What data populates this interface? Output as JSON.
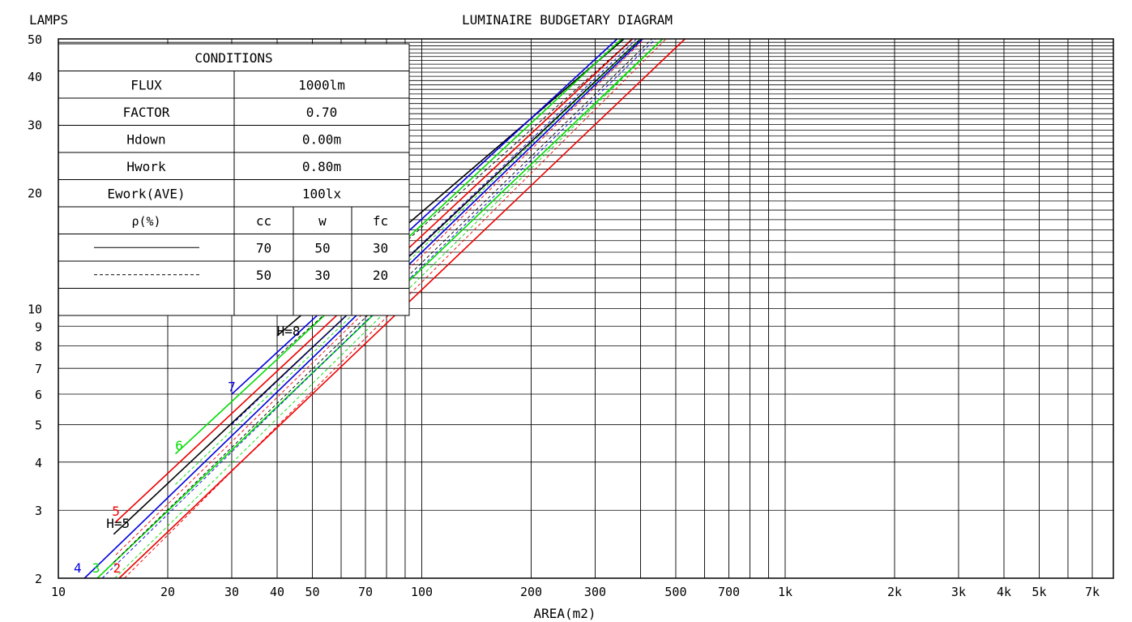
{
  "chart_data": {
    "type": "line",
    "title": "LUMINAIRE BUDGETARY DIAGRAM",
    "ylabel": "LAMPS",
    "xlabel": "AREA(m2)",
    "x_scale": "log",
    "y_scale": "log",
    "xlim": [
      10,
      8000
    ],
    "ylim": [
      2,
      50
    ],
    "grid": true,
    "x_tick_labels": [
      {
        "value": 10,
        "label": "10"
      },
      {
        "value": 20,
        "label": "20"
      },
      {
        "value": 30,
        "label": "30"
      },
      {
        "value": 40,
        "label": "40"
      },
      {
        "value": 50,
        "label": "50"
      },
      {
        "value": 70,
        "label": "70"
      },
      {
        "value": 100,
        "label": "100"
      },
      {
        "value": 200,
        "label": "200"
      },
      {
        "value": 300,
        "label": "300"
      },
      {
        "value": 500,
        "label": "500"
      },
      {
        "value": 700,
        "label": "700"
      },
      {
        "value": 1000,
        "label": "1k"
      },
      {
        "value": 2000,
        "label": "2k"
      },
      {
        "value": 3000,
        "label": "3k"
      },
      {
        "value": 4000,
        "label": "4k"
      },
      {
        "value": 5000,
        "label": "5k"
      },
      {
        "value": 7000,
        "label": "7k"
      }
    ],
    "y_tick_labels": [
      {
        "value": 2,
        "label": "2"
      },
      {
        "value": 3,
        "label": "3"
      },
      {
        "value": 4,
        "label": "4"
      },
      {
        "value": 5,
        "label": "5"
      },
      {
        "value": 6,
        "label": "6"
      },
      {
        "value": 7,
        "label": "7"
      },
      {
        "value": 8,
        "label": "8"
      },
      {
        "value": 9,
        "label": "9"
      },
      {
        "value": 10,
        "label": "10"
      },
      {
        "value": 20,
        "label": "20"
      },
      {
        "value": 30,
        "label": "30"
      },
      {
        "value": 40,
        "label": "40"
      },
      {
        "value": 50,
        "label": "50"
      }
    ],
    "series": [
      {
        "label": "H=8",
        "color": "#000000",
        "style": "solid",
        "x": [
          40,
          360
        ],
        "y": [
          8.5,
          50
        ]
      },
      {
        "label": "7",
        "color": "#0000dd",
        "style": "solid",
        "x": [
          30,
          345
        ],
        "y": [
          6.0,
          50
        ]
      },
      {
        "label": "6",
        "color": "#00dd00",
        "style": "solid",
        "x": [
          21,
          355
        ],
        "y": [
          4.2,
          50
        ]
      },
      {
        "label": "5",
        "color": "#ee0000",
        "style": "solid",
        "x": [
          14.4,
          380
        ],
        "y": [
          2.8,
          50
        ]
      },
      {
        "label": "H=5",
        "color": "#000000",
        "style": "solid",
        "x": [
          14.2,
          400
        ],
        "y": [
          2.6,
          50
        ]
      },
      {
        "label": "4",
        "color": "#0000dd",
        "style": "solid",
        "x": [
          11.8,
          405
        ],
        "y": [
          2.0,
          50
        ]
      },
      {
        "label": "3",
        "color": "#00dd00",
        "style": "solid",
        "x": [
          12.8,
          460
        ],
        "y": [
          2.0,
          50
        ]
      },
      {
        "label": "2",
        "color": "#ee0000",
        "style": "solid",
        "x": [
          14.7,
          530
        ],
        "y": [
          2.0,
          50
        ]
      },
      {
        "label": "",
        "color": "#000000",
        "style": "dashed",
        "x": [
          40,
          380
        ],
        "y": [
          7.5,
          50
        ]
      },
      {
        "label": "",
        "color": "#0000dd",
        "style": "dashed",
        "x": [
          30,
          390
        ],
        "y": [
          5.0,
          50
        ]
      },
      {
        "label": "",
        "color": "#00dd00",
        "style": "dashed",
        "x": [
          21,
          400
        ],
        "y": [
          3.5,
          50
        ]
      },
      {
        "label": "",
        "color": "#ee0000",
        "style": "dashed",
        "x": [
          14.4,
          410
        ],
        "y": [
          2.3,
          50
        ]
      },
      {
        "label": "",
        "color": "#000000",
        "style": "dashed",
        "x": [
          14.2,
          430
        ],
        "y": [
          2.2,
          50
        ]
      },
      {
        "label": "",
        "color": "#0000dd",
        "style": "dashed",
        "x": [
          13.2,
          440
        ],
        "y": [
          2.0,
          50
        ]
      },
      {
        "label": "",
        "color": "#00dd00",
        "style": "dashed",
        "x": [
          14.3,
          460
        ],
        "y": [
          2.0,
          50
        ]
      },
      {
        "label": "",
        "color": "#ee0000",
        "style": "dashed",
        "x": [
          15.2,
          470
        ],
        "y": [
          2.0,
          50
        ]
      }
    ],
    "series_labels": [
      {
        "text": "H=8",
        "color": "#000000",
        "x": 43,
        "y": 8.5
      },
      {
        "text": "7",
        "color": "#0000dd",
        "x": 30,
        "y": 6.1
      },
      {
        "text": "6",
        "color": "#00dd00",
        "x": 21.5,
        "y": 4.3
      },
      {
        "text": "5",
        "color": "#ee0000",
        "x": 14.4,
        "y": 2.9
      },
      {
        "text": "H=5",
        "color": "#000000",
        "x": 14.6,
        "y": 2.7
      },
      {
        "text": "4",
        "color": "#0000dd",
        "x": 11.3,
        "y": 2.07
      },
      {
        "text": "3",
        "color": "#00dd00",
        "x": 12.7,
        "y": 2.07
      },
      {
        "text": "2",
        "color": "#ee0000",
        "x": 14.5,
        "y": 2.07
      }
    ],
    "conditions_table": {
      "title": "CONDITIONS",
      "rows": [
        {
          "label": "FLUX",
          "value": "1000lm"
        },
        {
          "label": "FACTOR",
          "value": "0.70"
        },
        {
          "label": "Hdown",
          "value": "0.00m"
        },
        {
          "label": "Hwork",
          "value": "0.80m"
        },
        {
          "label": "Ework(AVE)",
          "value": "100lx"
        }
      ],
      "reflectance": {
        "label": "ρ(%)",
        "columns": [
          "cc",
          "w",
          "fc"
        ],
        "rows": [
          {
            "line_style": "solid",
            "values": [
              "70",
              "50",
              "30"
            ]
          },
          {
            "line_style": "dashed",
            "values": [
              "50",
              "30",
              "20"
            ]
          }
        ]
      }
    }
  }
}
